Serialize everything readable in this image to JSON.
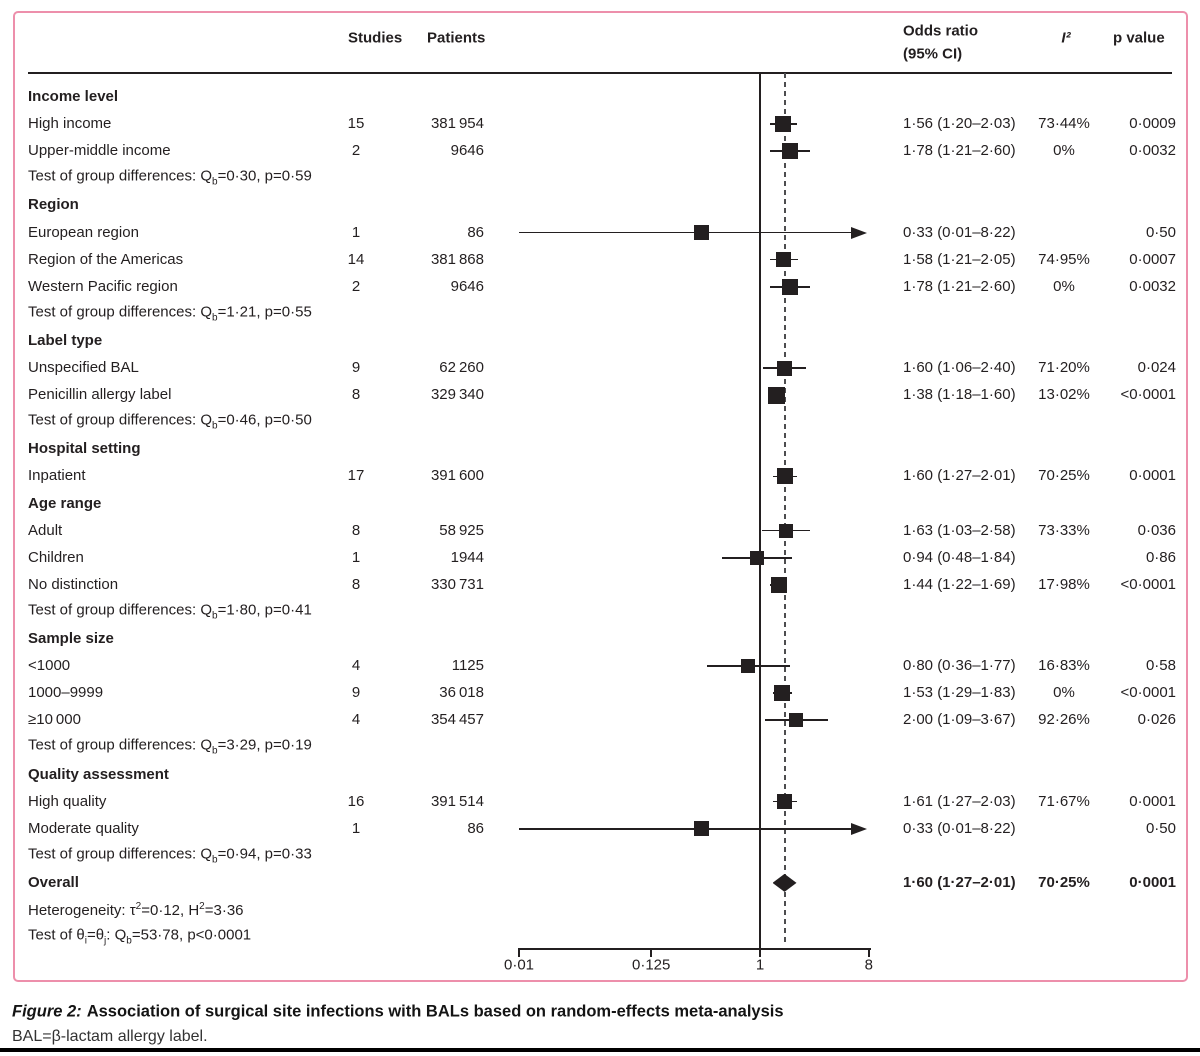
{
  "header": {
    "studies": "Studies",
    "patients": "Patients",
    "odds_ratio_line1": "Odds ratio",
    "odds_ratio_line2": "(95% CI)",
    "i_squared": "I²",
    "p_value": "p value"
  },
  "caption": {
    "figure_label": "Figure 2:",
    "title": "Association of surgical site infections with BALs based on random-effects meta-analysis",
    "footnote": "BAL=β-lactam allergy label."
  },
  "colors": {
    "panel_border": "#ed8fab",
    "ink": "#231f20",
    "dashed_line": "#4d4d4f"
  },
  "chart_data": {
    "type": "forest",
    "x_axis": {
      "scale": "log",
      "ticks": [
        0.01,
        0.125,
        1,
        8
      ],
      "tick_labels": [
        "0·01",
        "0·125",
        "1",
        "8"
      ],
      "reference_line": 1,
      "overall_dashed_line": 1.6
    },
    "rows": [
      {
        "kind": "group",
        "label": "Income level"
      },
      {
        "kind": "study",
        "label": "High income",
        "studies": "15",
        "patients": "381 954",
        "or": 1.56,
        "lo": 1.2,
        "hi": 2.03,
        "or_text": "1·56 (1·20–2·03)",
        "i2": "73·44%",
        "p": "0·0009",
        "size": 16
      },
      {
        "kind": "study",
        "label": "Upper-middle income",
        "studies": "2",
        "patients": "9646",
        "or": 1.78,
        "lo": 1.21,
        "hi": 2.6,
        "or_text": "1·78 (1·21–2·60)",
        "i2": "0%",
        "p": "0·0032",
        "size": 16
      },
      {
        "kind": "test",
        "segments": [
          [
            "t",
            "Test of group differences: Q"
          ],
          [
            "sub",
            "b"
          ],
          [
            "t",
            "=0·30, p=0·59"
          ]
        ]
      },
      {
        "kind": "group",
        "label": "Region"
      },
      {
        "kind": "study",
        "label": "European region",
        "studies": "1",
        "patients": "86",
        "or": 0.33,
        "lo": 0.01,
        "hi": 8.22,
        "arrow": true,
        "or_text": "0·33 (0·01–8·22)",
        "i2": "",
        "p": "0·50",
        "size": 15
      },
      {
        "kind": "study",
        "label": "Region of the Americas",
        "studies": "14",
        "patients": "381 868",
        "or": 1.58,
        "lo": 1.21,
        "hi": 2.05,
        "or_text": "1·58 (1·21–2·05)",
        "i2": "74·95%",
        "p": "0·0007",
        "size": 15
      },
      {
        "kind": "study",
        "label": "Western Pacific region",
        "studies": "2",
        "patients": "9646",
        "or": 1.78,
        "lo": 1.21,
        "hi": 2.6,
        "or_text": "1·78 (1·21–2·60)",
        "i2": "0%",
        "p": "0·0032",
        "size": 16
      },
      {
        "kind": "test",
        "segments": [
          [
            "t",
            "Test of group differences: Q"
          ],
          [
            "sub",
            "b"
          ],
          [
            "t",
            "=1·21, p=0·55"
          ]
        ]
      },
      {
        "kind": "group",
        "label": "Label type"
      },
      {
        "kind": "study",
        "label": "Unspecified BAL",
        "studies": "9",
        "patients": "62 260",
        "or": 1.6,
        "lo": 1.06,
        "hi": 2.4,
        "or_text": "1·60 (1·06–2·40)",
        "i2": "71·20%",
        "p": "0·024",
        "size": 15
      },
      {
        "kind": "study",
        "label": "Penicillin allergy label",
        "studies": "8",
        "patients": "329 340",
        "or": 1.38,
        "lo": 1.18,
        "hi": 1.6,
        "or_text": "1·38 (1·18–1·60)",
        "i2": "13·02%",
        "p": "<0·0001",
        "size": 17
      },
      {
        "kind": "test",
        "segments": [
          [
            "t",
            "Test of group differences: Q"
          ],
          [
            "sub",
            "b"
          ],
          [
            "t",
            "=0·46, p=0·50"
          ]
        ]
      },
      {
        "kind": "group",
        "label": "Hospital setting"
      },
      {
        "kind": "study",
        "label": "Inpatient",
        "studies": "17",
        "patients": "391 600",
        "or": 1.6,
        "lo": 1.27,
        "hi": 2.01,
        "or_text": "1·60 (1·27–2·01)",
        "i2": "70·25%",
        "p": "0·0001",
        "size": 16
      },
      {
        "kind": "group",
        "label": "Age range"
      },
      {
        "kind": "study",
        "label": "Adult",
        "studies": "8",
        "patients": "58 925",
        "or": 1.63,
        "lo": 1.03,
        "hi": 2.58,
        "or_text": "1·63 (1·03–2·58)",
        "i2": "73·33%",
        "p": "0·036",
        "size": 14
      },
      {
        "kind": "study",
        "label": "Children",
        "studies": "1",
        "patients": "1944",
        "or": 0.94,
        "lo": 0.48,
        "hi": 1.84,
        "or_text": "0·94 (0·48–1·84)",
        "i2": "",
        "p": "0·86",
        "size": 14
      },
      {
        "kind": "study",
        "label": "No distinction",
        "studies": "8",
        "patients": "330 731",
        "or": 1.44,
        "lo": 1.22,
        "hi": 1.69,
        "or_text": "1·44 (1·22–1·69)",
        "i2": "17·98%",
        "p": "<0·0001",
        "size": 16
      },
      {
        "kind": "test",
        "segments": [
          [
            "t",
            "Test of group differences: Q"
          ],
          [
            "sub",
            "b"
          ],
          [
            "t",
            "=1·80, p=0·41"
          ]
        ]
      },
      {
        "kind": "group",
        "label": "Sample size"
      },
      {
        "kind": "study",
        "label": "<1000",
        "studies": "4",
        "patients": "1125",
        "or": 0.8,
        "lo": 0.36,
        "hi": 1.77,
        "or_text": "0·80 (0·36–1·77)",
        "i2": "16·83%",
        "p": "0·58",
        "size": 14
      },
      {
        "kind": "study",
        "label": "1000–9999",
        "studies": "9",
        "patients": "36 018",
        "or": 1.53,
        "lo": 1.29,
        "hi": 1.83,
        "or_text": "1·53 (1·29–1·83)",
        "i2": "0%",
        "p": "<0·0001",
        "size": 16
      },
      {
        "kind": "study",
        "label": "≥10 000",
        "studies": "4",
        "patients": "354 457",
        "or": 2.0,
        "lo": 1.09,
        "hi": 3.67,
        "or_text": "2·00 (1·09–3·67)",
        "i2": "92·26%",
        "p": "0·026",
        "size": 14
      },
      {
        "kind": "test",
        "segments": [
          [
            "t",
            "Test of group differences: Q"
          ],
          [
            "sub",
            "b"
          ],
          [
            "t",
            "=3·29, p=0·19"
          ]
        ]
      },
      {
        "kind": "group",
        "label": "Quality assessment"
      },
      {
        "kind": "study",
        "label": "High quality",
        "studies": "16",
        "patients": "391 514",
        "or": 1.61,
        "lo": 1.27,
        "hi": 2.03,
        "or_text": "1·61 (1·27–2·03)",
        "i2": "71·67%",
        "p": "0·0001",
        "size": 15
      },
      {
        "kind": "study",
        "label": "Moderate quality",
        "studies": "1",
        "patients": "86",
        "or": 0.33,
        "lo": 0.01,
        "hi": 8.22,
        "arrow": true,
        "or_text": "0·33 (0·01–8·22)",
        "i2": "",
        "p": "0·50",
        "size": 15
      },
      {
        "kind": "test",
        "segments": [
          [
            "t",
            "Test of group differences: Q"
          ],
          [
            "sub",
            "b"
          ],
          [
            "t",
            "=0·94, p=0·33"
          ]
        ]
      },
      {
        "kind": "overall",
        "label": "Overall",
        "or": 1.6,
        "lo": 1.27,
        "hi": 2.01,
        "or_text": "1·60 (1·27–2·01)",
        "i2": "70·25%",
        "p": "0·0001"
      },
      {
        "kind": "note",
        "segments": [
          [
            "t",
            "Heterogeneity: τ"
          ],
          [
            "sup",
            "2"
          ],
          [
            "t",
            "=0·12, H"
          ],
          [
            "sup",
            "2"
          ],
          [
            "t",
            "=3·36"
          ]
        ]
      },
      {
        "kind": "note",
        "segments": [
          [
            "t",
            "Test of θ"
          ],
          [
            "sub",
            "i"
          ],
          [
            "t",
            "=θ"
          ],
          [
            "sub",
            "j"
          ],
          [
            "t",
            ": Q"
          ],
          [
            "sub",
            "b"
          ],
          [
            "t",
            "=53·78, p<0·0001"
          ]
        ]
      }
    ]
  }
}
